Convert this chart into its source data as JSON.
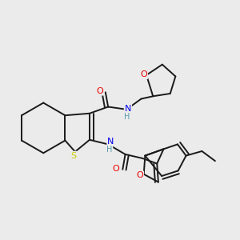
{
  "background_color": "#ebebeb",
  "bond_color": "#1a1a1a",
  "atom_colors": {
    "S": "#cccc00",
    "N": "#0000ee",
    "O": "#ee0000",
    "H": "#5599aa",
    "C": "#1a1a1a"
  },
  "figsize": [
    3.0,
    3.0
  ],
  "dpi": 100
}
